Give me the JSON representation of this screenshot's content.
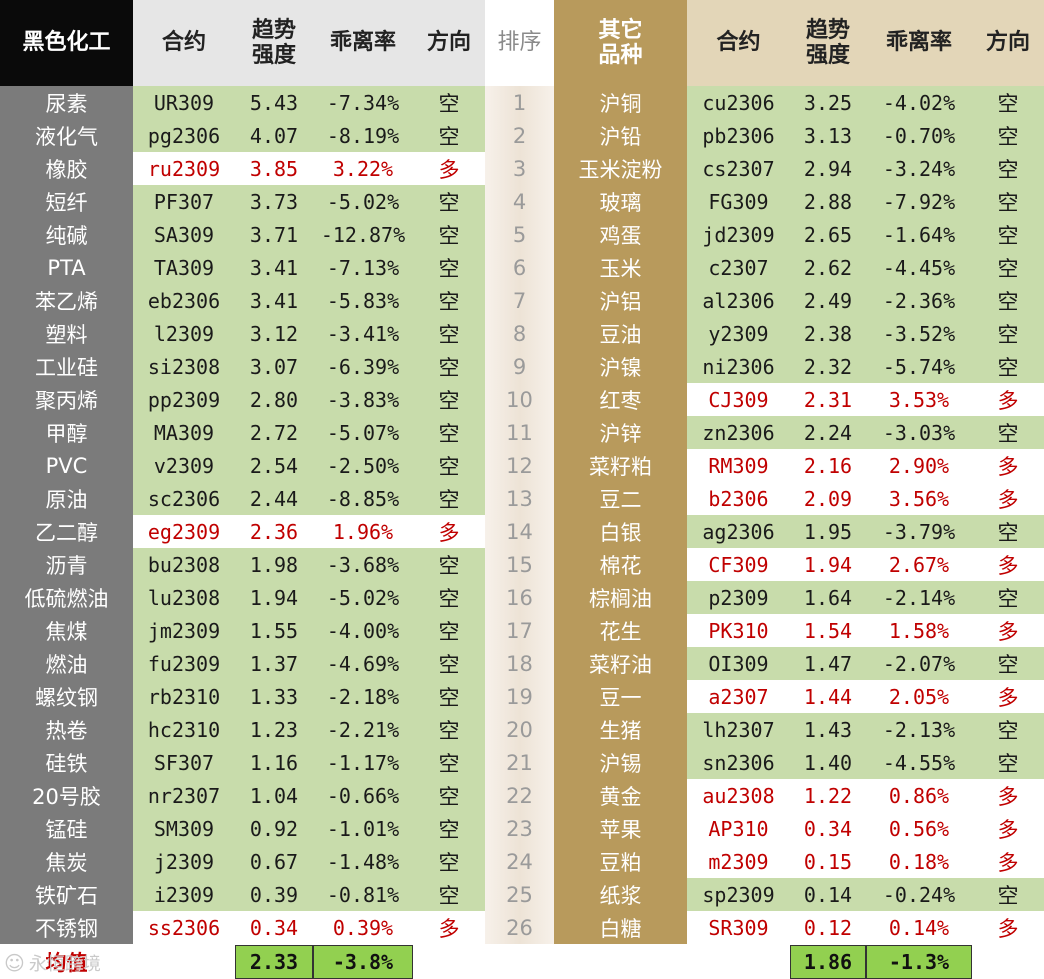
{
  "headers": {
    "left": {
      "group": "黑色化工",
      "contract": "合约",
      "trend_line1": "趋势",
      "trend_line2": "强度",
      "deviation": "乖离率",
      "direction": "方向"
    },
    "rank": "排序",
    "right": {
      "group_line1": "其它",
      "group_line2": "品种",
      "contract": "合约",
      "trend_line1": "趋势",
      "trend_line2": "强度",
      "deviation": "乖离率",
      "direction": "方向"
    }
  },
  "colors": {
    "dark_column": "#7b7b7b",
    "gold_column": "#b89a5c",
    "short_row": "#c8dcab",
    "long_row": "#ffffff",
    "long_text": "#c00000",
    "average_fill": "#92d050"
  },
  "left_rows": [
    {
      "name": "尿素",
      "contract": "UR309",
      "strength": "5.43",
      "deviation": "-7.34%",
      "direction": "空"
    },
    {
      "name": "液化气",
      "contract": "pg2306",
      "strength": "4.07",
      "deviation": "-8.19%",
      "direction": "空"
    },
    {
      "name": "橡胶",
      "contract": "ru2309",
      "strength": "3.85",
      "deviation": "3.22%",
      "direction": "多"
    },
    {
      "name": "短纤",
      "contract": "PF307",
      "strength": "3.73",
      "deviation": "-5.02%",
      "direction": "空"
    },
    {
      "name": "纯碱",
      "contract": "SA309",
      "strength": "3.71",
      "deviation": "-12.87%",
      "direction": "空"
    },
    {
      "name": "PTA",
      "contract": "TA309",
      "strength": "3.41",
      "deviation": "-7.13%",
      "direction": "空"
    },
    {
      "name": "苯乙烯",
      "contract": "eb2306",
      "strength": "3.41",
      "deviation": "-5.83%",
      "direction": "空"
    },
    {
      "name": "塑料",
      "contract": "l2309",
      "strength": "3.12",
      "deviation": "-3.41%",
      "direction": "空"
    },
    {
      "name": "工业硅",
      "contract": "si2308",
      "strength": "3.07",
      "deviation": "-6.39%",
      "direction": "空"
    },
    {
      "name": "聚丙烯",
      "contract": "pp2309",
      "strength": "2.80",
      "deviation": "-3.83%",
      "direction": "空"
    },
    {
      "name": "甲醇",
      "contract": "MA309",
      "strength": "2.72",
      "deviation": "-5.07%",
      "direction": "空"
    },
    {
      "name": "PVC",
      "contract": "v2309",
      "strength": "2.54",
      "deviation": "-2.50%",
      "direction": "空"
    },
    {
      "name": "原油",
      "contract": "sc2306",
      "strength": "2.44",
      "deviation": "-8.85%",
      "direction": "空"
    },
    {
      "name": "乙二醇",
      "contract": "eg2309",
      "strength": "2.36",
      "deviation": "1.96%",
      "direction": "多"
    },
    {
      "name": "沥青",
      "contract": "bu2308",
      "strength": "1.98",
      "deviation": "-3.68%",
      "direction": "空"
    },
    {
      "name": "低硫燃油",
      "contract": "lu2308",
      "strength": "1.94",
      "deviation": "-5.02%",
      "direction": "空"
    },
    {
      "name": "焦煤",
      "contract": "jm2309",
      "strength": "1.55",
      "deviation": "-4.00%",
      "direction": "空"
    },
    {
      "name": "燃油",
      "contract": "fu2309",
      "strength": "1.37",
      "deviation": "-4.69%",
      "direction": "空"
    },
    {
      "name": "螺纹钢",
      "contract": "rb2310",
      "strength": "1.33",
      "deviation": "-2.18%",
      "direction": "空"
    },
    {
      "name": "热卷",
      "contract": "hc2310",
      "strength": "1.23",
      "deviation": "-2.21%",
      "direction": "空"
    },
    {
      "name": "硅铁",
      "contract": "SF307",
      "strength": "1.16",
      "deviation": "-1.17%",
      "direction": "空"
    },
    {
      "name": "20号胶",
      "contract": "nr2307",
      "strength": "1.04",
      "deviation": "-0.66%",
      "direction": "空"
    },
    {
      "name": "锰硅",
      "contract": "SM309",
      "strength": "0.92",
      "deviation": "-1.01%",
      "direction": "空"
    },
    {
      "name": "焦炭",
      "contract": "j2309",
      "strength": "0.67",
      "deviation": "-1.48%",
      "direction": "空"
    },
    {
      "name": "铁矿石",
      "contract": "i2309",
      "strength": "0.39",
      "deviation": "-0.81%",
      "direction": "空"
    },
    {
      "name": "不锈钢",
      "contract": "ss2306",
      "strength": "0.34",
      "deviation": "0.39%",
      "direction": "多"
    }
  ],
  "right_rows": [
    {
      "rank": "1",
      "name": "沪铜",
      "contract": "cu2306",
      "strength": "3.25",
      "deviation": "-4.02%",
      "direction": "空"
    },
    {
      "rank": "2",
      "name": "沪铅",
      "contract": "pb2306",
      "strength": "3.13",
      "deviation": "-0.70%",
      "direction": "空"
    },
    {
      "rank": "3",
      "name": "玉米淀粉",
      "contract": "cs2307",
      "strength": "2.94",
      "deviation": "-3.24%",
      "direction": "空"
    },
    {
      "rank": "4",
      "name": "玻璃",
      "contract": "FG309",
      "strength": "2.88",
      "deviation": "-7.92%",
      "direction": "空"
    },
    {
      "rank": "5",
      "name": "鸡蛋",
      "contract": "jd2309",
      "strength": "2.65",
      "deviation": "-1.64%",
      "direction": "空"
    },
    {
      "rank": "6",
      "name": "玉米",
      "contract": "c2307",
      "strength": "2.62",
      "deviation": "-4.45%",
      "direction": "空"
    },
    {
      "rank": "7",
      "name": "沪铝",
      "contract": "al2306",
      "strength": "2.49",
      "deviation": "-2.36%",
      "direction": "空"
    },
    {
      "rank": "8",
      "name": "豆油",
      "contract": "y2309",
      "strength": "2.38",
      "deviation": "-3.52%",
      "direction": "空"
    },
    {
      "rank": "9",
      "name": "沪镍",
      "contract": "ni2306",
      "strength": "2.32",
      "deviation": "-5.74%",
      "direction": "空"
    },
    {
      "rank": "10",
      "name": "红枣",
      "contract": "CJ309",
      "strength": "2.31",
      "deviation": "3.53%",
      "direction": "多"
    },
    {
      "rank": "11",
      "name": "沪锌",
      "contract": "zn2306",
      "strength": "2.24",
      "deviation": "-3.03%",
      "direction": "空"
    },
    {
      "rank": "12",
      "name": "菜籽粕",
      "contract": "RM309",
      "strength": "2.16",
      "deviation": "2.90%",
      "direction": "多"
    },
    {
      "rank": "13",
      "name": "豆二",
      "contract": "b2306",
      "strength": "2.09",
      "deviation": "3.56%",
      "direction": "多"
    },
    {
      "rank": "14",
      "name": "白银",
      "contract": "ag2306",
      "strength": "1.95",
      "deviation": "-3.79%",
      "direction": "空"
    },
    {
      "rank": "15",
      "name": "棉花",
      "contract": "CF309",
      "strength": "1.94",
      "deviation": "2.67%",
      "direction": "多"
    },
    {
      "rank": "16",
      "name": "棕榈油",
      "contract": "p2309",
      "strength": "1.64",
      "deviation": "-2.14%",
      "direction": "空"
    },
    {
      "rank": "17",
      "name": "花生",
      "contract": "PK310",
      "strength": "1.54",
      "deviation": "1.58%",
      "direction": "多"
    },
    {
      "rank": "18",
      "name": "菜籽油",
      "contract": "OI309",
      "strength": "1.47",
      "deviation": "-2.07%",
      "direction": "空"
    },
    {
      "rank": "19",
      "name": "豆一",
      "contract": "a2307",
      "strength": "1.44",
      "deviation": "2.05%",
      "direction": "多"
    },
    {
      "rank": "20",
      "name": "生猪",
      "contract": "lh2307",
      "strength": "1.43",
      "deviation": "-2.13%",
      "direction": "空"
    },
    {
      "rank": "21",
      "name": "沪锡",
      "contract": "sn2306",
      "strength": "1.40",
      "deviation": "-4.55%",
      "direction": "空"
    },
    {
      "rank": "22",
      "name": "黄金",
      "contract": "au2308",
      "strength": "1.22",
      "deviation": "0.86%",
      "direction": "多"
    },
    {
      "rank": "23",
      "name": "苹果",
      "contract": "AP310",
      "strength": "0.34",
      "deviation": "0.56%",
      "direction": "多"
    },
    {
      "rank": "24",
      "name": "豆粕",
      "contract": "m2309",
      "strength": "0.15",
      "deviation": "0.18%",
      "direction": "多"
    },
    {
      "rank": "25",
      "name": "纸浆",
      "contract": "sp2309",
      "strength": "0.14",
      "deviation": "-0.24%",
      "direction": "空"
    },
    {
      "rank": "26",
      "name": "白糖",
      "contract": "SR309",
      "strength": "0.12",
      "deviation": "0.14%",
      "direction": "多"
    }
  ],
  "averages": {
    "label": "均值",
    "left_strength": "2.33",
    "left_deviation": "-3.8%",
    "right_strength": "1.86",
    "right_deviation": "-1.3%"
  },
  "watermark": {
    "icon": "weibo-logo-icon",
    "text": "永恒跨境"
  }
}
